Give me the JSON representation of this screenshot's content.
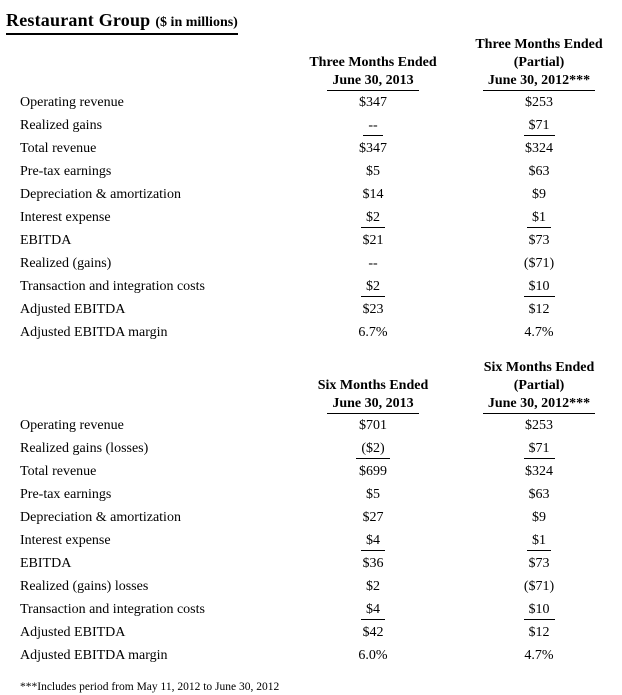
{
  "title": {
    "main": "Restaurant Group",
    "suffix": "($ in millions)"
  },
  "tables": [
    {
      "name": "three-months",
      "header": {
        "col2013": [
          "Three Months Ended",
          "June 30, 2013"
        ],
        "col2012": [
          "Three Months Ended",
          "(Partial)",
          "June 30, 2012***"
        ]
      },
      "rows": [
        {
          "label": "Operating revenue",
          "v2013": "$347",
          "v2012": "$253"
        },
        {
          "label": "Realized gains",
          "v2013": "--",
          "v2012": "$71",
          "u2013": true,
          "u2012": true
        },
        {
          "label": "Total revenue",
          "v2013": "$347",
          "v2012": "$324"
        },
        {
          "label": "Pre-tax earnings",
          "v2013": "$5",
          "v2012": "$63"
        },
        {
          "label": "Depreciation & amortization",
          "v2013": "$14",
          "v2012": "$9"
        },
        {
          "label": "Interest expense",
          "v2013": "$2",
          "v2012": "$1",
          "u2013": true,
          "u2012": true
        },
        {
          "label": "EBITDA",
          "v2013": "$21",
          "v2012": "$73"
        },
        {
          "label": "Realized (gains)",
          "v2013": "--",
          "v2012": "($71)"
        },
        {
          "label": "Transaction and integration costs",
          "v2013": "$2",
          "v2012": "$10",
          "u2013": true,
          "u2012": true
        },
        {
          "label": "Adjusted EBITDA",
          "v2013": "$23",
          "v2012": "$12"
        },
        {
          "label": "Adjusted EBITDA margin",
          "v2013": "6.7%",
          "v2012": "4.7%"
        }
      ]
    },
    {
      "name": "six-months",
      "header": {
        "col2013": [
          "Six Months Ended",
          "June 30, 2013"
        ],
        "col2012": [
          "Six Months Ended",
          "(Partial)",
          "June 30, 2012***"
        ]
      },
      "rows": [
        {
          "label": "Operating revenue",
          "v2013": "$701",
          "v2012": "$253"
        },
        {
          "label": "Realized gains (losses)",
          "v2013": "($2)",
          "v2012": "$71",
          "u2013": true,
          "u2012": true
        },
        {
          "label": "Total revenue",
          "v2013": "$699",
          "v2012": "$324"
        },
        {
          "label": "Pre-tax earnings",
          "v2013": "$5",
          "v2012": "$63"
        },
        {
          "label": "Depreciation & amortization",
          "v2013": "$27",
          "v2012": "$9"
        },
        {
          "label": "Interest expense",
          "v2013": "$4",
          "v2012": "$1",
          "u2013": true,
          "u2012": true
        },
        {
          "label": "EBITDA",
          "v2013": "$36",
          "v2012": "$73"
        },
        {
          "label": "Realized (gains) losses",
          "v2013": "$2",
          "v2012": "($71)"
        },
        {
          "label": "Transaction and integration costs",
          "v2013": "$4",
          "v2012": "$10",
          "u2013": true,
          "u2012": true
        },
        {
          "label": "Adjusted EBITDA",
          "v2013": "$42",
          "v2012": "$12"
        },
        {
          "label": "Adjusted EBITDA margin",
          "v2013": "6.0%",
          "v2012": "4.7%"
        }
      ]
    }
  ],
  "footnote": "***Includes period from May 11, 2012 to June 30, 2012"
}
